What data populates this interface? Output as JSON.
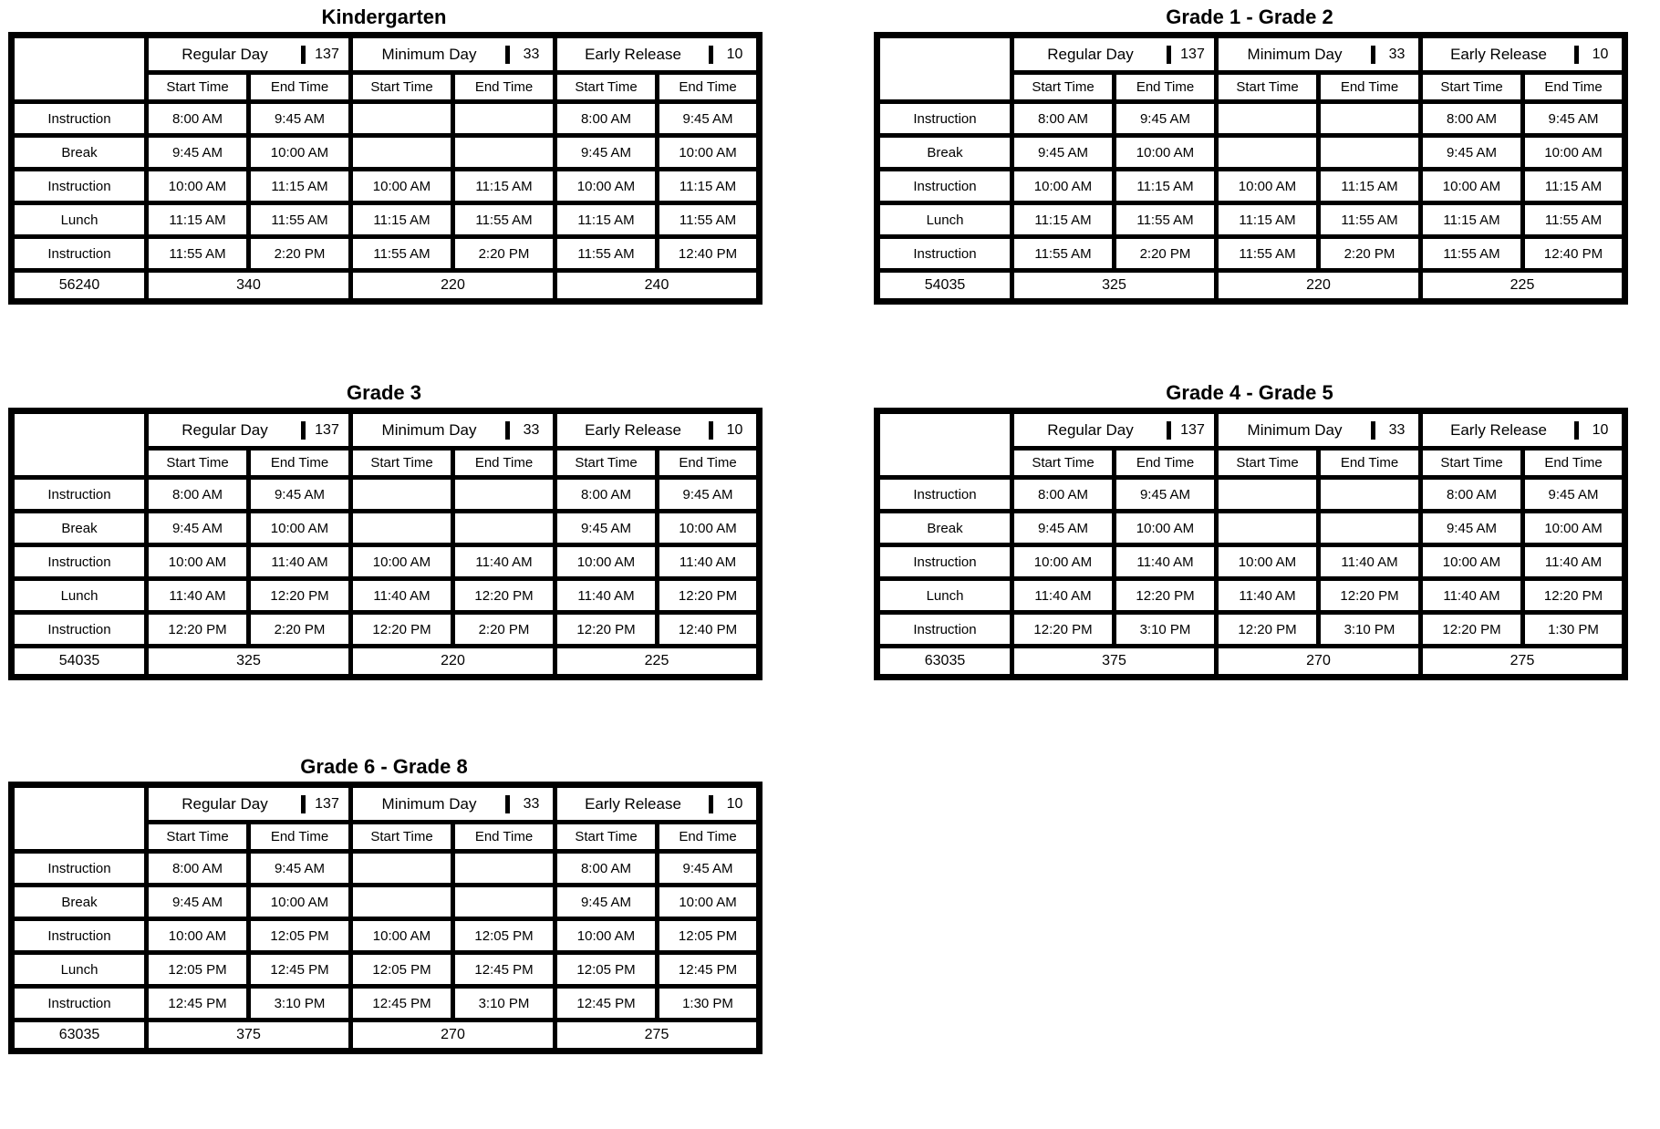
{
  "colors": {
    "highlight": "#BDD7EE",
    "border": "#000000",
    "cell_background": "#FFFFFF",
    "text": "#000000"
  },
  "headers": {
    "start": "Start Time",
    "end": "End Time"
  },
  "day_types": [
    {
      "label": "Regular Day",
      "days": "137"
    },
    {
      "label": "Minimum Day",
      "days": "33"
    },
    {
      "label": "Early Release",
      "days": "10"
    }
  ],
  "tables": [
    {
      "title": "Kindergarten",
      "rows": [
        {
          "label": "Instruction",
          "highlight": true,
          "times": [
            "8:00 AM",
            "9:45 AM",
            "",
            "",
            "8:00 AM",
            "9:45 AM"
          ]
        },
        {
          "label": "Break",
          "highlight": false,
          "times": [
            "9:45 AM",
            "10:00 AM",
            "",
            "",
            "9:45 AM",
            "10:00 AM"
          ]
        },
        {
          "label": "Instruction",
          "highlight": true,
          "times": [
            "10:00 AM",
            "11:15 AM",
            "10:00 AM",
            "11:15 AM",
            "10:00 AM",
            "11:15 AM"
          ]
        },
        {
          "label": "Lunch",
          "highlight": false,
          "times": [
            "11:15 AM",
            "11:55 AM",
            "11:15 AM",
            "11:55 AM",
            "11:15 AM",
            "11:55 AM"
          ]
        },
        {
          "label": "Instruction",
          "highlight": true,
          "times": [
            "11:55 AM",
            "2:20 PM",
            "11:55 AM",
            "2:20 PM",
            "11:55 AM",
            "12:40 PM"
          ]
        }
      ],
      "totals": {
        "annual": "56240",
        "regular": "340",
        "minimum": "220",
        "early": "240"
      }
    },
    {
      "title": "Grade 1 - Grade 2",
      "rows": [
        {
          "label": "Instruction",
          "highlight": true,
          "times": [
            "8:00 AM",
            "9:45 AM",
            "",
            "",
            "8:00 AM",
            "9:45 AM"
          ]
        },
        {
          "label": "Break",
          "highlight": false,
          "times": [
            "9:45 AM",
            "10:00 AM",
            "",
            "",
            "9:45 AM",
            "10:00 AM"
          ]
        },
        {
          "label": "Instruction",
          "highlight": true,
          "times": [
            "10:00 AM",
            "11:15 AM",
            "10:00 AM",
            "11:15 AM",
            "10:00 AM",
            "11:15 AM"
          ]
        },
        {
          "label": "Lunch",
          "highlight": false,
          "times": [
            "11:15 AM",
            "11:55 AM",
            "11:15 AM",
            "11:55 AM",
            "11:15 AM",
            "11:55 AM"
          ]
        },
        {
          "label": "Instruction",
          "highlight": true,
          "times": [
            "11:55 AM",
            "2:20 PM",
            "11:55 AM",
            "2:20 PM",
            "11:55 AM",
            "12:40 PM"
          ]
        }
      ],
      "totals": {
        "annual": "54035",
        "regular": "325",
        "minimum": "220",
        "early": "225"
      }
    },
    {
      "title": "Grade 3",
      "rows": [
        {
          "label": "Instruction",
          "highlight": true,
          "times": [
            "8:00 AM",
            "9:45 AM",
            "",
            "",
            "8:00 AM",
            "9:45 AM"
          ]
        },
        {
          "label": "Break",
          "highlight": false,
          "times": [
            "9:45 AM",
            "10:00 AM",
            "",
            "",
            "9:45 AM",
            "10:00 AM"
          ]
        },
        {
          "label": "Instruction",
          "highlight": true,
          "times": [
            "10:00 AM",
            "11:40 AM",
            "10:00 AM",
            "11:40 AM",
            "10:00 AM",
            "11:40 AM"
          ]
        },
        {
          "label": "Lunch",
          "highlight": false,
          "times": [
            "11:40 AM",
            "12:20 PM",
            "11:40 AM",
            "12:20 PM",
            "11:40 AM",
            "12:20 PM"
          ]
        },
        {
          "label": "Instruction",
          "highlight": true,
          "times": [
            "12:20 PM",
            "2:20 PM",
            "12:20 PM",
            "2:20 PM",
            "12:20 PM",
            "12:40 PM"
          ]
        }
      ],
      "totals": {
        "annual": "54035",
        "regular": "325",
        "minimum": "220",
        "early": "225"
      }
    },
    {
      "title": "Grade 4 - Grade 5",
      "rows": [
        {
          "label": "Instruction",
          "highlight": true,
          "times": [
            "8:00 AM",
            "9:45 AM",
            "",
            "",
            "8:00 AM",
            "9:45 AM"
          ]
        },
        {
          "label": "Break",
          "highlight": false,
          "times": [
            "9:45 AM",
            "10:00 AM",
            "",
            "",
            "9:45 AM",
            "10:00 AM"
          ]
        },
        {
          "label": "Instruction",
          "highlight": true,
          "times": [
            "10:00 AM",
            "11:40 AM",
            "10:00 AM",
            "11:40 AM",
            "10:00 AM",
            "11:40 AM"
          ]
        },
        {
          "label": "Lunch",
          "highlight": false,
          "times": [
            "11:40 AM",
            "12:20 PM",
            "11:40 AM",
            "12:20 PM",
            "11:40 AM",
            "12:20 PM"
          ]
        },
        {
          "label": "Instruction",
          "highlight": true,
          "times": [
            "12:20 PM",
            "3:10 PM",
            "12:20 PM",
            "3:10 PM",
            "12:20 PM",
            "1:30 PM"
          ]
        }
      ],
      "totals": {
        "annual": "63035",
        "regular": "375",
        "minimum": "270",
        "early": "275"
      }
    },
    {
      "title": "Grade 6 - Grade 8",
      "rows": [
        {
          "label": "Instruction",
          "highlight": true,
          "times": [
            "8:00 AM",
            "9:45 AM",
            "",
            "",
            "8:00 AM",
            "9:45 AM"
          ]
        },
        {
          "label": "Break",
          "highlight": false,
          "times": [
            "9:45 AM",
            "10:00 AM",
            "",
            "",
            "9:45 AM",
            "10:00 AM"
          ]
        },
        {
          "label": "Instruction",
          "highlight": true,
          "times": [
            "10:00 AM",
            "12:05 PM",
            "10:00 AM",
            "12:05 PM",
            "10:00 AM",
            "12:05 PM"
          ]
        },
        {
          "label": "Lunch",
          "highlight": false,
          "times": [
            "12:05 PM",
            "12:45 PM",
            "12:05 PM",
            "12:45 PM",
            "12:05 PM",
            "12:45 PM"
          ]
        },
        {
          "label": "Instruction",
          "highlight": true,
          "times": [
            "12:45 PM",
            "3:10 PM",
            "12:45 PM",
            "3:10 PM",
            "12:45 PM",
            "1:30 PM"
          ]
        }
      ],
      "totals": {
        "annual": "63035",
        "regular": "375",
        "minimum": "270",
        "early": "275"
      }
    }
  ]
}
